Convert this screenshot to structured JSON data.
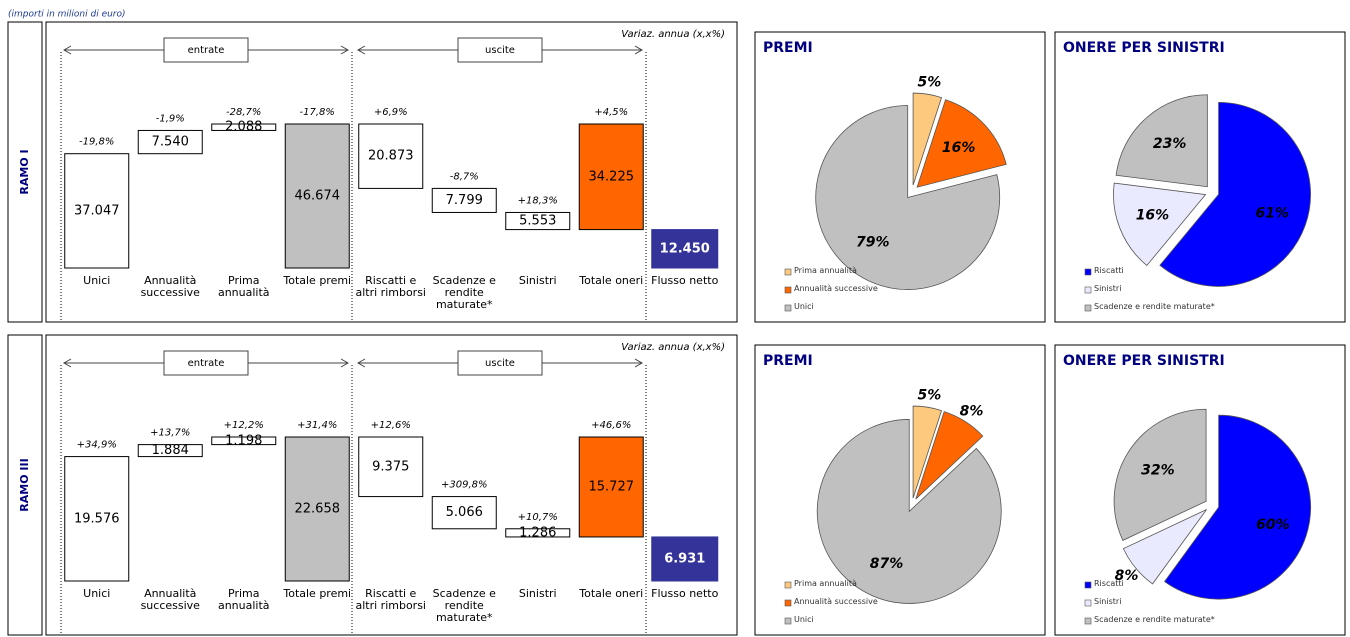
{
  "note": "(importi in milioni di euro)",
  "chart_data": [
    {
      "type": "waterfall",
      "row_label": "RAMO I",
      "subtitle": "Variaz. annua  (x,x%)",
      "groups": [
        "entrate",
        "uscite"
      ],
      "categories": [
        "Unici",
        "Annualità successive",
        "Prima annualità",
        "Totale premi",
        "Riscatti e altri rimborsi",
        "Scadenze e rendite maturate*",
        "Sinistri",
        "Totale oneri",
        "Flusso netto"
      ],
      "values": [
        37047,
        7540,
        2088,
        46674,
        20873,
        7799,
        5553,
        34225,
        12450
      ],
      "value_labels": [
        "37.047",
        "7.540",
        "2.088",
        "46.674",
        "20.873",
        "7.799",
        "5.553",
        "34.225",
        "12.450"
      ],
      "change_labels": [
        "-19,8%",
        "-1,9%",
        "-28,7%",
        "-17,8%",
        "+6,9%",
        "-8,7%",
        "+18,3%",
        "+4,5%",
        null
      ],
      "colors": [
        "#ffffff",
        "#ffffff",
        "#ffffff",
        "#c0c0c0",
        "#ffffff",
        "#ffffff",
        "#ffffff",
        "#ff6600",
        "#333399"
      ]
    },
    {
      "type": "pie",
      "title": "PREMI",
      "categories": [
        "Prima annualità",
        "Annualità successive",
        "Unici"
      ],
      "values": [
        5,
        16,
        79
      ],
      "colors": [
        "#fcc97e",
        "#ff6600",
        "#c0c0c0"
      ]
    },
    {
      "type": "pie",
      "title": "ONERE PER SINISTRI",
      "categories": [
        "Riscatti",
        "Sinistri",
        "Scadenze e rendite maturate*"
      ],
      "values": [
        61,
        16,
        23
      ],
      "colors": [
        "#0000ff",
        "#eaeaff",
        "#c0c0c0"
      ]
    },
    {
      "type": "waterfall",
      "row_label": "RAMO III",
      "subtitle": "Variaz. annua  (x,x%)",
      "groups": [
        "entrate",
        "uscite"
      ],
      "categories": [
        "Unici",
        "Annualità successive",
        "Prima annualità",
        "Totale premi",
        "Riscatti e altri rimborsi",
        "Scadenze e rendite maturate*",
        "Sinistri",
        "Totale oneri",
        "Flusso netto"
      ],
      "values": [
        19576,
        1884,
        1198,
        22658,
        9375,
        5066,
        1286,
        15727,
        6931
      ],
      "value_labels": [
        "19.576",
        "1.884",
        "1.198",
        "22.658",
        "9.375",
        "5.066",
        "1.286",
        "15.727",
        "6.931"
      ],
      "change_labels": [
        "+34,9%",
        "+13,7%",
        "+12,2%",
        "+31,4%",
        "+12,6%",
        "+309,8%",
        "+10,7%",
        "+46,6%",
        null
      ],
      "colors": [
        "#ffffff",
        "#ffffff",
        "#ffffff",
        "#c0c0c0",
        "#ffffff",
        "#ffffff",
        "#ffffff",
        "#ff6600",
        "#333399"
      ]
    },
    {
      "type": "pie",
      "title": "PREMI",
      "categories": [
        "Prima annualità",
        "Annualità successive",
        "Unici"
      ],
      "values": [
        5,
        8,
        87
      ],
      "colors": [
        "#fcc97e",
        "#ff6600",
        "#c0c0c0"
      ]
    },
    {
      "type": "pie",
      "title": "ONERE PER SINISTRI",
      "categories": [
        "Riscatti",
        "Sinistri",
        "Scadenze e rendite maturate*"
      ],
      "values": [
        60,
        8,
        32
      ],
      "colors": [
        "#0000ff",
        "#eaeaff",
        "#c0c0c0"
      ]
    }
  ]
}
